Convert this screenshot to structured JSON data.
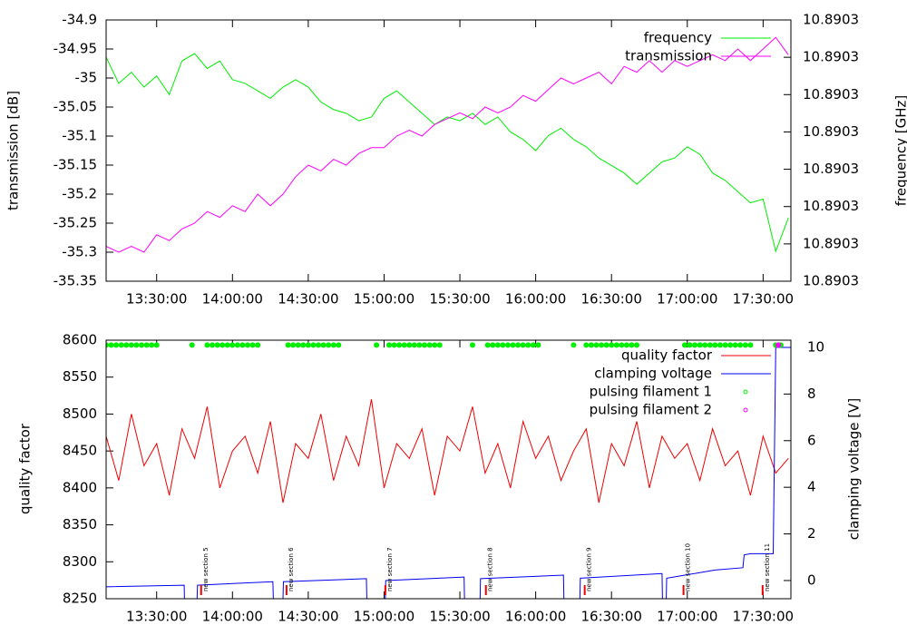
{
  "chart_data": [
    {
      "type": "line",
      "ylabel": "transmission [dB]",
      "y2label": "frequency [GHz]",
      "x": [
        "13:10:00",
        "13:15:00",
        "13:20:00",
        "13:25:00",
        "13:30:00",
        "13:35:00",
        "13:40:00",
        "13:45:00",
        "13:50:00",
        "13:55:00",
        "14:00:00",
        "14:05:00",
        "14:10:00",
        "14:15:00",
        "14:20:00",
        "14:25:00",
        "14:30:00",
        "14:35:00",
        "14:40:00",
        "14:45:00",
        "14:50:00",
        "14:55:00",
        "15:00:00",
        "15:05:00",
        "15:10:00",
        "15:15:00",
        "15:20:00",
        "15:25:00",
        "15:30:00",
        "15:35:00",
        "15:40:00",
        "15:45:00",
        "15:50:00",
        "15:55:00",
        "16:00:00",
        "16:05:00",
        "16:10:00",
        "16:15:00",
        "16:20:00",
        "16:25:00",
        "16:30:00",
        "16:35:00",
        "16:40:00",
        "16:45:00",
        "16:50:00",
        "16:55:00",
        "17:00:00",
        "17:05:00",
        "17:10:00",
        "17:15:00",
        "17:20:00",
        "17:25:00",
        "17:30:00",
        "17:35:00",
        "17:40:00"
      ],
      "xlim": [
        "13:10:00",
        "17:41:00"
      ],
      "xticks": [
        "13:30:00",
        "14:00:00",
        "14:30:00",
        "15:00:00",
        "15:30:00",
        "16:00:00",
        "16:30:00",
        "17:00:00",
        "17:30:00"
      ],
      "ylim": [
        -35.35,
        -34.9
      ],
      "yticks": [
        -35.35,
        -35.3,
        -35.25,
        -35.2,
        -35.15,
        -35.1,
        -35.05,
        -35,
        -34.95,
        -34.9
      ],
      "y2lim": [
        10.890295,
        10.89033
      ],
      "y2ticks": [
        {
          "value": 10.890295,
          "label": "10.8903"
        },
        10.8903,
        {
          "value": 10.890305,
          "label": "10.8903"
        },
        {
          "value": 10.89031,
          "label": "10.8903"
        },
        {
          "value": 10.890315,
          "label": "10.8903"
        },
        {
          "value": 10.89032,
          "label": "10.8903"
        },
        {
          "value": 10.890325,
          "label": "10.8903"
        },
        {
          "value": 10.89033,
          "label": "10.8903"
        }
      ],
      "legend": "top-right",
      "series": [
        {
          "name": "frequency",
          "color": "#00ee00",
          "axis": "y2",
          "style": "line",
          "values": [
            10.890325,
            10.8903215,
            10.890323,
            10.890321,
            10.8903225,
            10.89032,
            10.8903245,
            10.8903255,
            10.8903235,
            10.8903245,
            10.890322,
            10.8903215,
            10.8903205,
            10.8903195,
            10.890321,
            10.890322,
            10.890321,
            10.890319,
            10.890318,
            10.8903175,
            10.8903165,
            10.890317,
            10.8903195,
            10.8903205,
            10.890319,
            10.8903175,
            10.890316,
            10.890317,
            10.8903165,
            10.8903175,
            10.890316,
            10.890317,
            10.890315,
            10.890314,
            10.8903125,
            10.8903145,
            10.8903155,
            10.890314,
            10.890313,
            10.8903115,
            10.8903105,
            10.8903095,
            10.890308,
            10.8903095,
            10.890311,
            10.8903115,
            10.890313,
            10.890312,
            10.8903095,
            10.8903085,
            10.890307,
            10.8903055,
            10.890306,
            10.890299,
            10.8903035
          ]
        },
        {
          "name": "transmission",
          "color": "#ff00ff",
          "style": "line",
          "values": [
            -35.29,
            -35.3,
            -35.29,
            -35.3,
            -35.27,
            -35.28,
            -35.26,
            -35.25,
            -35.23,
            -35.24,
            -35.22,
            -35.23,
            -35.2,
            -35.22,
            -35.2,
            -35.17,
            -35.15,
            -35.16,
            -35.14,
            -35.15,
            -35.13,
            -35.12,
            -35.12,
            -35.1,
            -35.09,
            -35.1,
            -35.08,
            -35.07,
            -35.06,
            -35.07,
            -35.05,
            -35.06,
            -35.05,
            -35.03,
            -35.04,
            -35.02,
            -35,
            -35.01,
            -35,
            -34.99,
            -35.01,
            -34.98,
            -34.99,
            -34.97,
            -34.99,
            -34.97,
            -34.98,
            -34.97,
            -34.96,
            -34.97,
            -34.95,
            -34.97,
            -34.95,
            -34.93,
            -34.96
          ]
        }
      ]
    },
    {
      "type": "line",
      "ylabel": "quality factor",
      "y2label": "clamping voltage [V]",
      "x": [
        "13:10:00",
        "13:15:00",
        "13:20:00",
        "13:25:00",
        "13:30:00",
        "13:35:00",
        "13:40:00",
        "13:45:00",
        "13:50:00",
        "13:55:00",
        "14:00:00",
        "14:05:00",
        "14:10:00",
        "14:15:00",
        "14:20:00",
        "14:25:00",
        "14:30:00",
        "14:35:00",
        "14:40:00",
        "14:45:00",
        "14:50:00",
        "14:55:00",
        "15:00:00",
        "15:05:00",
        "15:10:00",
        "15:15:00",
        "15:20:00",
        "15:25:00",
        "15:30:00",
        "15:35:00",
        "15:40:00",
        "15:45:00",
        "15:50:00",
        "15:55:00",
        "16:00:00",
        "16:05:00",
        "16:10:00",
        "16:15:00",
        "16:20:00",
        "16:25:00",
        "16:30:00",
        "16:35:00",
        "16:40:00",
        "16:45:00",
        "16:50:00",
        "16:55:00",
        "17:00:00",
        "17:05:00",
        "17:10:00",
        "17:15:00",
        "17:20:00",
        "17:25:00",
        "17:30:00",
        "17:35:00",
        "17:40:00"
      ],
      "xlim": [
        "13:10:00",
        "17:41:00"
      ],
      "xticks": [
        "13:30:00",
        "14:00:00",
        "14:30:00",
        "15:00:00",
        "15:30:00",
        "16:00:00",
        "16:30:00",
        "17:00:00",
        "17:30:00"
      ],
      "ylim": [
        8250,
        8600
      ],
      "yticks": [
        8250,
        8300,
        8350,
        8400,
        8450,
        8500,
        8550,
        8600
      ],
      "y2lim": [
        -0.78,
        10.31
      ],
      "y2ticks": [
        0,
        2,
        4,
        6,
        8,
        10
      ],
      "legend": "top-right",
      "series": [
        {
          "name": "quality factor",
          "color": "#ee0000",
          "style": "line",
          "values": [
            8470,
            8410,
            8500,
            8430,
            8460,
            8390,
            8480,
            8440,
            8510,
            8400,
            8450,
            8470,
            8420,
            8490,
            8380,
            8460,
            8440,
            8500,
            8410,
            8470,
            8430,
            8520,
            8400,
            8460,
            8440,
            8480,
            8390,
            8470,
            8450,
            8510,
            8420,
            8460,
            8400,
            8490,
            8440,
            8470,
            8410,
            8450,
            8480,
            8380,
            8460,
            8430,
            8490,
            8400,
            8470,
            8440,
            8460,
            8410,
            8480,
            8430,
            8450,
            8390,
            8470,
            8420,
            8440
          ]
        },
        {
          "name": "clamping voltage",
          "color": "#0000ee",
          "axis": "y2",
          "style": "line",
          "x": [
            "13:10:00",
            "13:40:54",
            "13:41:00",
            "13:46:00",
            "13:46:10",
            "14:16:00",
            "14:16:10",
            "14:20:00",
            "14:20:10",
            "14:53:00",
            "14:53:10",
            "15:00:30",
            "15:00:40",
            "15:31:40",
            "15:31:50",
            "15:38:00",
            "15:38:10",
            "16:11:00",
            "16:11:10",
            "16:17:30",
            "16:17:40",
            "16:50:00",
            "16:50:10",
            "16:51:40",
            "16:51:50",
            "17:11:00",
            "17:22:00",
            "17:22:30",
            "17:25:00",
            "17:34:00",
            "17:35:00",
            "17:40:48"
          ],
          "values": [
            -0.27,
            -0.2,
            -0.78,
            -0.78,
            -0.2,
            -0.05,
            -0.78,
            -0.78,
            -0.05,
            0.08,
            -0.78,
            -0.78,
            0,
            0.15,
            -0.78,
            -0.78,
            0.08,
            0.23,
            -0.78,
            -0.78,
            0.1,
            0.3,
            -0.78,
            -0.78,
            0.1,
            0.45,
            0.55,
            1.1,
            1.15,
            1.15,
            10,
            10
          ]
        },
        {
          "name": "pulsing filament 1",
          "color": "#00ee00",
          "axis": "y2",
          "style": "points",
          "x": [
            "13:10:00",
            "13:12:00",
            "13:14:00",
            "13:16:00",
            "13:18:00",
            "13:20:00",
            "13:22:00",
            "13:24:00",
            "13:26:00",
            "13:28:00",
            "13:30:00",
            "13:44:00",
            "13:50:00",
            "13:52:00",
            "13:54:00",
            "13:56:00",
            "13:58:00",
            "14:00:00",
            "14:02:00",
            "14:04:00",
            "14:06:00",
            "14:08:00",
            "14:10:00",
            "14:22:00",
            "14:24:00",
            "14:26:00",
            "14:28:00",
            "14:30:00",
            "14:32:00",
            "14:34:00",
            "14:36:00",
            "14:38:00",
            "14:40:00",
            "14:42:00",
            "14:57:00",
            "15:02:00",
            "15:04:00",
            "15:06:00",
            "15:08:00",
            "15:10:00",
            "15:12:00",
            "15:14:00",
            "15:16:00",
            "15:18:00",
            "15:20:00",
            "15:22:00",
            "15:35:00",
            "15:41:00",
            "15:43:00",
            "15:45:00",
            "15:47:00",
            "15:49:00",
            "15:51:00",
            "15:53:00",
            "15:55:00",
            "15:57:00",
            "15:59:00",
            "16:01:00",
            "16:15:00",
            "16:20:00",
            "16:22:00",
            "16:24:00",
            "16:26:00",
            "16:28:00",
            "16:30:00",
            "16:32:00",
            "16:34:00",
            "16:36:00",
            "16:38:00",
            "16:40:00",
            "16:59:00",
            "17:01:00",
            "17:03:00",
            "17:05:00",
            "17:07:00",
            "17:09:00",
            "17:11:00",
            "17:13:00",
            "17:15:00",
            "17:17:00",
            "17:19:00",
            "17:21:00",
            "17:23:00",
            "17:25:00",
            "17:35:00",
            "17:37:00"
          ],
          "values": [
            10.1,
            10.1,
            10.1,
            10.1,
            10.1,
            10.1,
            10.1,
            10.1,
            10.1,
            10.1,
            10.1,
            10.1,
            10.1,
            10.1,
            10.1,
            10.1,
            10.1,
            10.1,
            10.1,
            10.1,
            10.1,
            10.1,
            10.1,
            10.1,
            10.1,
            10.1,
            10.1,
            10.1,
            10.1,
            10.1,
            10.1,
            10.1,
            10.1,
            10.1,
            10.1,
            10.1,
            10.1,
            10.1,
            10.1,
            10.1,
            10.1,
            10.1,
            10.1,
            10.1,
            10.1,
            10.1,
            10.1,
            10.1,
            10.1,
            10.1,
            10.1,
            10.1,
            10.1,
            10.1,
            10.1,
            10.1,
            10.1,
            10.1,
            10.1,
            10.1,
            10.1,
            10.1,
            10.1,
            10.1,
            10.1,
            10.1,
            10.1,
            10.1,
            10.1,
            10.1,
            10.1,
            10.1,
            10.1,
            10.1,
            10.1,
            10.1,
            10.1,
            10.1,
            10.1,
            10.1,
            10.1,
            10.1,
            10.1,
            10.1,
            10.1,
            10.1
          ]
        },
        {
          "name": "pulsing filament 2",
          "color": "#ff00ff",
          "axis": "y2",
          "style": "points",
          "x": [
            "17:36:00"
          ],
          "values": [
            10.1
          ]
        }
      ],
      "annotations": [
        {
          "text": "new section 5",
          "x": "13:47:36"
        },
        {
          "text": "new section 6",
          "x": "14:21:24"
        },
        {
          "text": "new section 7",
          "x": "15:00:30"
        },
        {
          "text": "new section 8",
          "x": "15:40:18"
        },
        {
          "text": "new section 9",
          "x": "16:19:24"
        },
        {
          "text": "new section 10",
          "x": "16:58:30"
        },
        {
          "text": "new section 11",
          "x": "17:29:48"
        }
      ]
    }
  ]
}
